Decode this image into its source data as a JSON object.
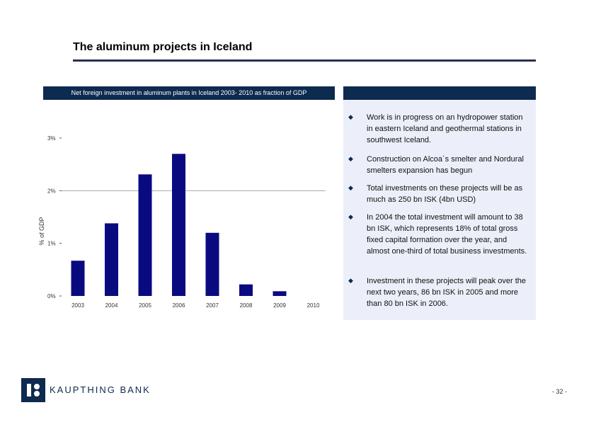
{
  "title": "The aluminum projects in Iceland",
  "chart_header": "Net foreign investment in aluminum plants in Iceland 2003- 2010 as fraction of GDP",
  "bullets": [
    "Work is in progress on an hydropower station in eastern Iceland and geothermal stations in southwest Iceland.",
    "Construction on Alcoa´s smelter and Nordural smelters expansion has begun",
    "Total investments on these projects will be as much as 250 bn ISK (4bn USD)",
    "In 2004 the total investment will amount to 38 bn ISK, which represents 18% of total gross fixed capital formation over the year, and almost one-third of total business investments.",
    "Investment in these projects will peak over the next two years, 86 bn ISK in 2005 and more than 80 bn ISK in 2006."
  ],
  "logo_text": "KAUPTHING BANK",
  "page_number": "- 32 -",
  "colors": {
    "bar": "#0a0a80",
    "header": "#0d2a4f",
    "panel": "#eceff9"
  },
  "chart_data": {
    "type": "bar",
    "title": "",
    "ylabel": "% of GDP",
    "xlabel": "",
    "categories": [
      "2003",
      "2004",
      "2005",
      "2006",
      "2007",
      "2008",
      "2009",
      "2010"
    ],
    "values": [
      0.67,
      1.38,
      2.31,
      2.7,
      1.2,
      0.22,
      0.09,
      0
    ],
    "ylim": [
      0,
      3
    ],
    "yticks": [
      "0%",
      "1%",
      "2%",
      "3%"
    ],
    "grid": "major line at 2%"
  }
}
